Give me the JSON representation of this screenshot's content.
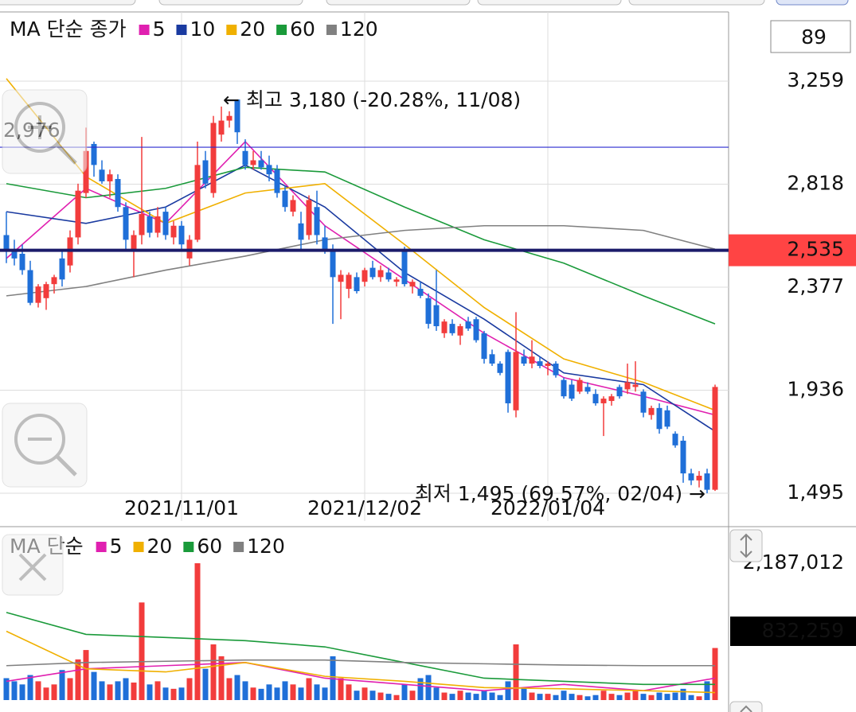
{
  "ui": {
    "count_box": "89"
  },
  "chart_data": [
    {
      "type": "candlestick",
      "legend_title": "MA 단순 종가",
      "up_color": "#f23c3c",
      "down_color": "#1f6fd8",
      "categories": [
        null,
        null,
        null,
        null,
        null,
        null,
        null,
        null,
        null,
        null,
        null,
        null,
        null,
        null,
        null,
        null,
        null,
        null,
        null,
        null,
        null,
        null,
        "2021/11/01",
        null,
        null,
        null,
        null,
        null,
        null,
        null,
        null,
        null,
        null,
        null,
        null,
        null,
        null,
        null,
        null,
        null,
        null,
        null,
        null,
        null,
        null,
        "2021/12/02",
        null,
        null,
        null,
        null,
        null,
        null,
        null,
        null,
        null,
        null,
        null,
        null,
        null,
        null,
        null,
        null,
        null,
        null,
        null,
        null,
        null,
        null,
        "2022/01/04",
        null,
        null,
        null,
        null,
        null,
        null,
        null,
        null,
        null,
        null,
        null,
        null,
        null,
        null,
        null,
        null,
        null,
        null,
        null,
        null,
        null
      ],
      "ohlc": [
        [
          2600,
          2700,
          2480,
          2540
        ],
        [
          2540,
          2580,
          2470,
          2500
        ],
        [
          2520,
          2560,
          2430,
          2450
        ],
        [
          2450,
          2490,
          2300,
          2310
        ],
        [
          2310,
          2390,
          2290,
          2380
        ],
        [
          2330,
          2400,
          2280,
          2390
        ],
        [
          2390,
          2430,
          2350,
          2420
        ],
        [
          2500,
          2530,
          2380,
          2410
        ],
        [
          2470,
          2620,
          2440,
          2590
        ],
        [
          2590,
          2820,
          2560,
          2790
        ],
        [
          2780,
          3060,
          2760,
          2960
        ],
        [
          2990,
          3000,
          2850,
          2900
        ],
        [
          2880,
          2920,
          2820,
          2830
        ],
        [
          2830,
          2880,
          2760,
          2860
        ],
        [
          2840,
          2860,
          2700,
          2720
        ],
        [
          2720,
          2740,
          2530,
          2580
        ],
        [
          2540,
          2620,
          2420,
          2600
        ],
        [
          2600,
          3020,
          2560,
          2690
        ],
        [
          2680,
          2700,
          2590,
          2610
        ],
        [
          2610,
          2720,
          2590,
          2680
        ],
        [
          2700,
          2720,
          2580,
          2600
        ],
        [
          2590,
          2660,
          2560,
          2640
        ],
        [
          2640,
          2660,
          2540,
          2560
        ],
        [
          2500,
          2600,
          2470,
          2580
        ],
        [
          2580,
          3000,
          2570,
          2900
        ],
        [
          2920,
          2960,
          2800,
          2820
        ],
        [
          2780,
          3110,
          2760,
          3080
        ],
        [
          3030,
          3150,
          3000,
          3090
        ],
        [
          3090,
          3130,
          3060,
          3110
        ],
        [
          3180,
          3180,
          2990,
          3040
        ],
        [
          2960,
          3010,
          2880,
          2900
        ],
        [
          2900,
          2960,
          2880,
          2920
        ],
        [
          2920,
          2960,
          2880,
          2890
        ],
        [
          2900,
          2940,
          2830,
          2860
        ],
        [
          2880,
          2900,
          2760,
          2780
        ],
        [
          2790,
          2810,
          2700,
          2720
        ],
        [
          2700,
          2770,
          2680,
          2750
        ],
        [
          2650,
          2700,
          2530,
          2580
        ],
        [
          2600,
          2770,
          2580,
          2750
        ],
        [
          2720,
          2790,
          2560,
          2600
        ],
        [
          2590,
          2640,
          2520,
          2530
        ],
        [
          2530,
          2560,
          2220,
          2420
        ],
        [
          2400,
          2450,
          2240,
          2430
        ],
        [
          2370,
          2440,
          2330,
          2430
        ],
        [
          2420,
          2440,
          2350,
          2360
        ],
        [
          2400,
          2460,
          2380,
          2450
        ],
        [
          2460,
          2490,
          2410,
          2420
        ],
        [
          2420,
          2470,
          2400,
          2450
        ],
        [
          2440,
          2460,
          2400,
          2410
        ],
        [
          2400,
          2420,
          2380,
          2410
        ],
        [
          2540,
          2550,
          2380,
          2390
        ],
        [
          2380,
          2410,
          2350,
          2400
        ],
        [
          2370,
          2400,
          2330,
          2340
        ],
        [
          2330,
          2350,
          2200,
          2220
        ],
        [
          2300,
          2450,
          2190,
          2210
        ],
        [
          2180,
          2240,
          2160,
          2230
        ],
        [
          2220,
          2240,
          2170,
          2180
        ],
        [
          2170,
          2220,
          2130,
          2210
        ],
        [
          2230,
          2250,
          2190,
          2200
        ],
        [
          2240,
          2250,
          2140,
          2150
        ],
        [
          2180,
          2190,
          2050,
          2070
        ],
        [
          2090,
          2110,
          2040,
          2050
        ],
        [
          2050,
          2060,
          2000,
          2010
        ],
        [
          2100,
          2110,
          1840,
          1880
        ],
        [
          1850,
          2270,
          1820,
          2100
        ],
        [
          2080,
          2110,
          2040,
          2050
        ],
        [
          2050,
          2150,
          2030,
          2080
        ],
        [
          2060,
          2080,
          2030,
          2040
        ],
        [
          2040,
          2060,
          2000,
          2050
        ],
        [
          2050,
          2060,
          1990,
          2000
        ],
        [
          1980,
          1990,
          1900,
          1910
        ],
        [
          1960,
          1980,
          1890,
          1900
        ],
        [
          1930,
          1990,
          1920,
          1980
        ],
        [
          1950,
          1970,
          1920,
          1930
        ],
        [
          1920,
          1940,
          1870,
          1880
        ],
        [
          1880,
          1910,
          1740,
          1900
        ],
        [
          1890,
          1920,
          1870,
          1910
        ],
        [
          1950,
          1960,
          1900,
          1910
        ],
        [
          1940,
          2050,
          1920,
          1970
        ],
        [
          1950,
          2060,
          1930,
          1960
        ],
        [
          1930,
          1940,
          1820,
          1840
        ],
        [
          1830,
          1870,
          1810,
          1860
        ],
        [
          1860,
          1880,
          1750,
          1770
        ],
        [
          1850,
          1870,
          1770,
          1780
        ],
        [
          1750,
          1760,
          1690,
          1700
        ],
        [
          1720,
          1740,
          1540,
          1580
        ],
        [
          1580,
          1600,
          1530,
          1550
        ],
        [
          1550,
          1590,
          1520,
          1570
        ],
        [
          1580,
          1600,
          1495,
          1510
        ],
        [
          1510,
          1960,
          1505,
          1950
        ]
      ],
      "ylim": [
        1376,
        3555
      ],
      "yticks": [
        {
          "value": 3259,
          "label": "3,259"
        },
        {
          "value": 2818,
          "label": "2,818"
        },
        {
          "value": 2377,
          "label": "2,377"
        },
        {
          "value": 1936,
          "label": "1,936"
        },
        {
          "value": 1495,
          "label": "1,495"
        }
      ],
      "grid": true,
      "lines": [
        {
          "value": 2976,
          "label": "2,976",
          "color": "#2a2ad0"
        },
        {
          "value": 2535,
          "label": "2,535",
          "color": "#1b1b6a"
        }
      ],
      "ma_series": [
        {
          "name": "5",
          "color": "#e020b0",
          "x": [
            0,
            10,
            20,
            30,
            40,
            50,
            60,
            70,
            80,
            89
          ],
          "values": [
            2500,
            2800,
            2650,
            3000,
            2640,
            2410,
            2180,
            1990,
            1910,
            1830
          ]
        },
        {
          "name": "10",
          "color": "#1a3aa0",
          "x": [
            0,
            10,
            20,
            30,
            40,
            50,
            60,
            70,
            80,
            89
          ],
          "values": [
            2700,
            2650,
            2720,
            2900,
            2720,
            2440,
            2240,
            2010,
            1960,
            1760
          ]
        },
        {
          "name": "20",
          "color": "#f0b000",
          "x": [
            0,
            10,
            20,
            30,
            40,
            50,
            60,
            70,
            80,
            89
          ],
          "values": [
            3270,
            2850,
            2650,
            2780,
            2820,
            2560,
            2290,
            2070,
            1970,
            1850
          ]
        },
        {
          "name": "60",
          "color": "#1a9a3a",
          "x": [
            0,
            10,
            20,
            30,
            40,
            50,
            60,
            70,
            80,
            89
          ],
          "values": [
            2820,
            2760,
            2800,
            2890,
            2870,
            2720,
            2580,
            2480,
            2340,
            2220
          ]
        },
        {
          "name": "120",
          "color": "#808080",
          "x": [
            0,
            10,
            20,
            30,
            40,
            50,
            60,
            70,
            80,
            89
          ],
          "values": [
            2340,
            2380,
            2450,
            2510,
            2580,
            2620,
            2640,
            2640,
            2620,
            2540
          ]
        }
      ],
      "annotations": [
        {
          "text": "← 최고 3,180 (-20.28%, 11/08)",
          "color": "#c01818"
        },
        {
          "text": "최저 1,495 (69.57%, 02/04) →",
          "color": "#1a50c8"
        }
      ]
    },
    {
      "type": "bar",
      "legend_title": "MA 단순",
      "values": [
        350000,
        300000,
        250000,
        400000,
        300000,
        200000,
        250000,
        480000,
        350000,
        650000,
        800000,
        450000,
        300000,
        250000,
        300000,
        350000,
        280000,
        1560000,
        250000,
        300000,
        200000,
        180000,
        200000,
        350000,
        2187012,
        500000,
        890000,
        700000,
        350000,
        400000,
        300000,
        200000,
        180000,
        250000,
        200000,
        300000,
        250000,
        200000,
        350000,
        250000,
        200000,
        700000,
        350000,
        250000,
        150000,
        200000,
        150000,
        120000,
        100000,
        80000,
        250000,
        150000,
        350000,
        400000,
        200000,
        120000,
        100000,
        150000,
        120000,
        100000,
        150000,
        120000,
        80000,
        300000,
        890000,
        200000,
        120000,
        100000,
        100000,
        80000,
        150000,
        100000,
        80000,
        60000,
        80000,
        150000,
        100000,
        80000,
        120000,
        150000,
        100000,
        80000,
        120000,
        100000,
        120000,
        180000,
        80000,
        60000,
        300000,
        832259
      ],
      "ylim": [
        0,
        2187012
      ],
      "yticks": [
        {
          "value": 2187012,
          "label": "2,187,012"
        }
      ],
      "current": {
        "value": 832259,
        "label": "832,259"
      },
      "ma_series": [
        {
          "name": "5",
          "color": "#e020b0",
          "x": [
            0,
            10,
            20,
            30,
            40,
            50,
            60,
            70,
            80,
            89
          ],
          "values": [
            300000,
            500000,
            550000,
            600000,
            350000,
            250000,
            150000,
            250000,
            150000,
            350000
          ]
        },
        {
          "name": "20",
          "color": "#f0b000",
          "x": [
            0,
            10,
            20,
            30,
            40,
            50,
            60,
            70,
            80,
            89
          ],
          "values": [
            1100000,
            500000,
            450000,
            600000,
            380000,
            300000,
            200000,
            180000,
            150000,
            120000
          ]
        },
        {
          "name": "60",
          "color": "#1a9a3a",
          "x": [
            0,
            10,
            20,
            30,
            40,
            50,
            60,
            70,
            80,
            89
          ],
          "values": [
            1400000,
            1050000,
            1000000,
            950000,
            850000,
            600000,
            350000,
            300000,
            250000,
            250000
          ]
        },
        {
          "name": "120",
          "color": "#808080",
          "x": [
            0,
            10,
            20,
            30,
            40,
            50,
            60,
            70,
            80,
            89
          ],
          "values": [
            550000,
            600000,
            620000,
            640000,
            640000,
            600000,
            580000,
            560000,
            550000,
            550000
          ]
        }
      ]
    }
  ]
}
